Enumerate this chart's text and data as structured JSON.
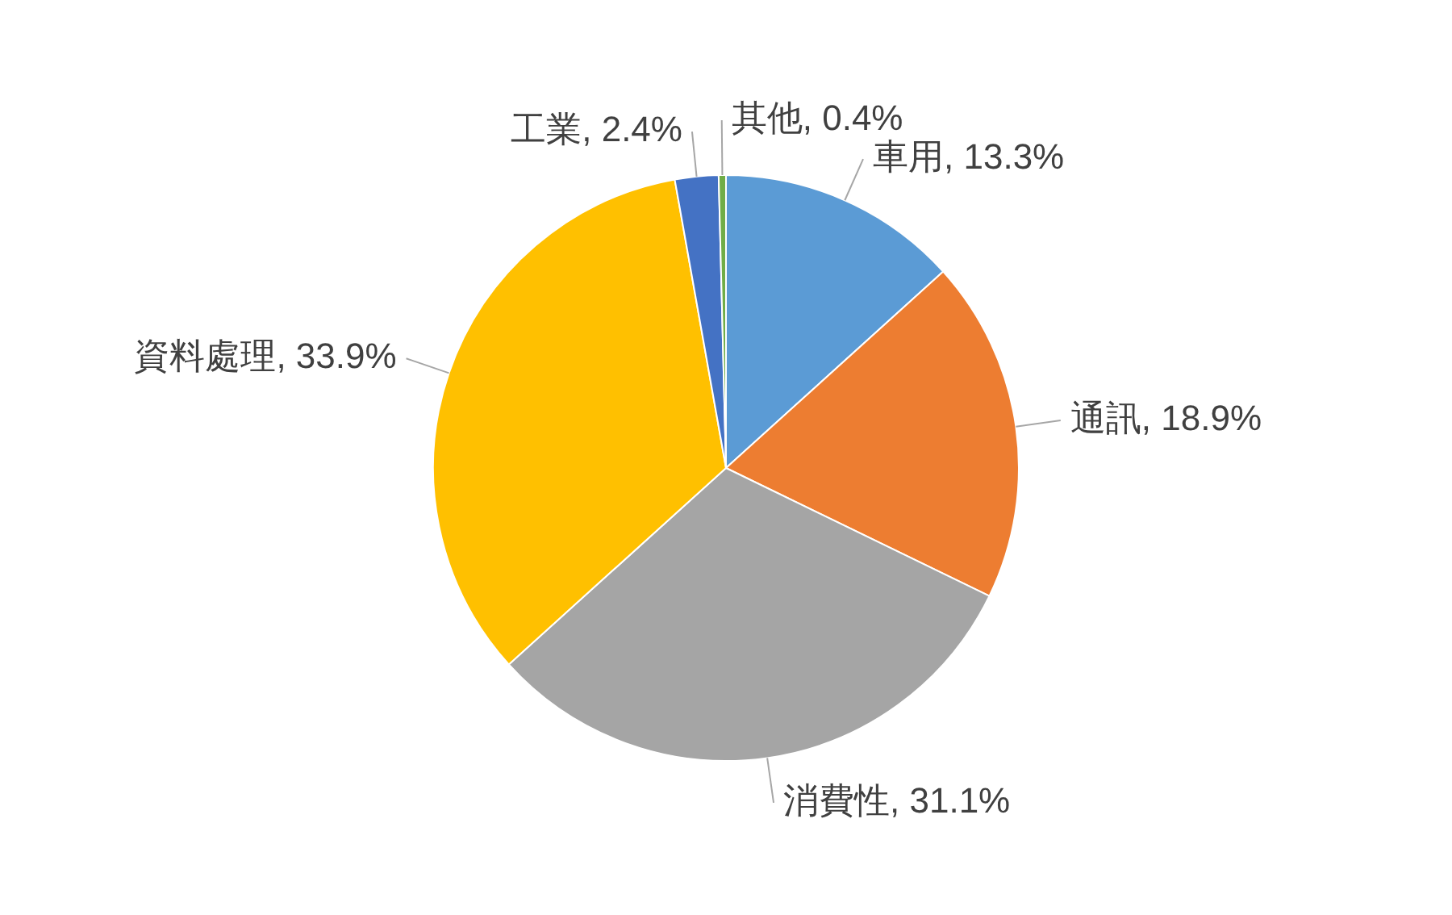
{
  "chart_data": {
    "type": "pie",
    "categories": [
      "車用",
      "通訊",
      "消費性",
      "資料處理",
      "工業",
      "其他"
    ],
    "values": [
      13.3,
      18.9,
      31.1,
      33.9,
      2.4,
      0.4
    ],
    "value_labels": [
      "13.3%",
      "18.9%",
      "31.1%",
      "33.9%",
      "2.4%",
      "0.4%"
    ],
    "colors": [
      "#5b9bd5",
      "#ed7d31",
      "#a5a5a5",
      "#ffc000",
      "#4472c4",
      "#70ad47"
    ],
    "legend": false
  }
}
